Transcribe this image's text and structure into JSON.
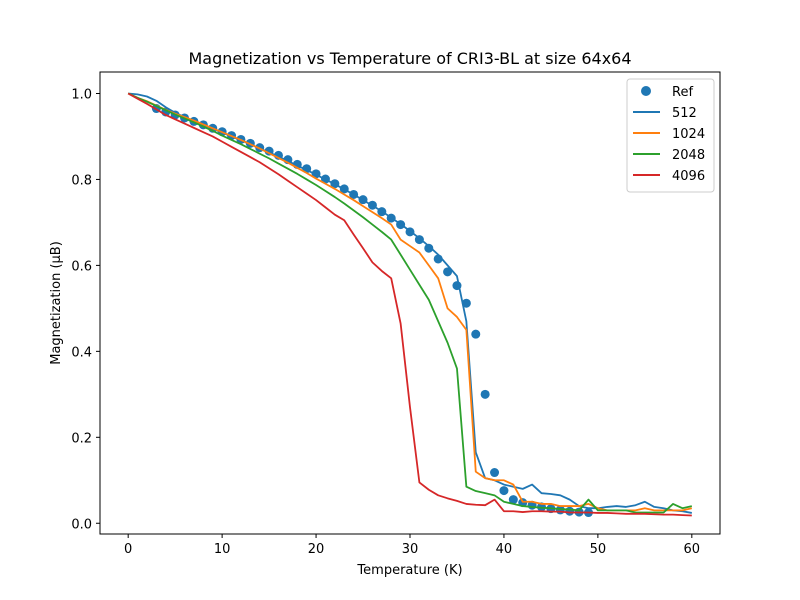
{
  "chart_data": {
    "type": "line",
    "title": "Magnetization vs Temperature of CRI3-BL at size 64x64",
    "xlabel": "Temperature (K)",
    "ylabel": "Magnetization (μB)",
    "xlim": [
      -3,
      63
    ],
    "ylim": [
      -0.025,
      1.05
    ],
    "xticks": [
      0,
      10,
      20,
      30,
      40,
      50,
      60
    ],
    "xtick_labels": [
      "0",
      "10",
      "20",
      "30",
      "40",
      "50",
      "60"
    ],
    "yticks": [
      0.0,
      0.2,
      0.4,
      0.6,
      0.8,
      1.0
    ],
    "ytick_labels": [
      "0.0",
      "0.2",
      "0.4",
      "0.6",
      "0.8",
      "1.0"
    ],
    "legend_position": "top-right",
    "scatter": {
      "name": "Ref",
      "color": "#1f77b4",
      "x": [
        3,
        4,
        5,
        6,
        7,
        8,
        9,
        10,
        11,
        12,
        13,
        14,
        15,
        16,
        17,
        18,
        19,
        20,
        21,
        22,
        23,
        24,
        25,
        26,
        27,
        28,
        29,
        30,
        31,
        32,
        33,
        34,
        35,
        36,
        37,
        38,
        39,
        40,
        41,
        42,
        43,
        44,
        45,
        46,
        47,
        48,
        49
      ],
      "y": [
        0.965,
        0.957,
        0.95,
        0.943,
        0.935,
        0.927,
        0.919,
        0.911,
        0.902,
        0.893,
        0.884,
        0.874,
        0.866,
        0.856,
        0.846,
        0.835,
        0.825,
        0.813,
        0.801,
        0.79,
        0.778,
        0.765,
        0.753,
        0.74,
        0.725,
        0.71,
        0.695,
        0.678,
        0.66,
        0.64,
        0.615,
        0.585,
        0.553,
        0.512,
        0.44,
        0.3,
        0.118,
        0.076,
        0.055,
        0.048,
        0.042,
        0.038,
        0.034,
        0.031,
        0.028,
        0.026,
        0.025
      ]
    },
    "series": [
      {
        "name": "512",
        "color": "#1f77b4",
        "x": [
          0,
          1,
          2,
          3,
          4,
          5,
          6,
          7,
          8,
          9,
          10,
          11,
          12,
          13,
          14,
          15,
          16,
          17,
          18,
          19,
          20,
          21,
          22,
          23,
          24,
          25,
          26,
          27,
          28,
          29,
          30,
          31,
          32,
          33,
          34,
          35,
          36,
          37,
          38,
          39,
          40,
          41,
          42,
          43,
          44,
          45,
          46,
          47,
          48,
          49,
          50,
          51,
          52,
          53,
          54,
          55,
          56,
          57,
          58,
          59,
          60
        ],
        "y": [
          1.0,
          0.998,
          0.993,
          0.983,
          0.968,
          0.955,
          0.945,
          0.935,
          0.927,
          0.918,
          0.909,
          0.9,
          0.891,
          0.882,
          0.872,
          0.863,
          0.853,
          0.843,
          0.832,
          0.822,
          0.811,
          0.8,
          0.789,
          0.777,
          0.765,
          0.752,
          0.739,
          0.726,
          0.711,
          0.696,
          0.68,
          0.663,
          0.645,
          0.625,
          0.6,
          0.575,
          0.47,
          0.165,
          0.105,
          0.1,
          0.09,
          0.085,
          0.08,
          0.09,
          0.07,
          0.068,
          0.065,
          0.055,
          0.04,
          0.035,
          0.035,
          0.038,
          0.04,
          0.038,
          0.042,
          0.05,
          0.038,
          0.035,
          0.03,
          0.028,
          0.024
        ]
      },
      {
        "name": "1024",
        "color": "#ff7f0e",
        "x": [
          0,
          1,
          2,
          3,
          4,
          5,
          6,
          7,
          8,
          9,
          10,
          11,
          12,
          13,
          14,
          15,
          16,
          17,
          18,
          19,
          20,
          21,
          22,
          23,
          24,
          25,
          26,
          27,
          28,
          29,
          30,
          31,
          32,
          33,
          34,
          35,
          36,
          37,
          38,
          39,
          40,
          41,
          42,
          43,
          44,
          45,
          46,
          47,
          48,
          49,
          50,
          51,
          52,
          53,
          54,
          55,
          56,
          57,
          58,
          59,
          60
        ],
        "y": [
          1.0,
          0.99,
          0.982,
          0.972,
          0.962,
          0.953,
          0.945,
          0.937,
          0.928,
          0.919,
          0.91,
          0.901,
          0.892,
          0.882,
          0.872,
          0.861,
          0.85,
          0.839,
          0.827,
          0.815,
          0.802,
          0.79,
          0.778,
          0.765,
          0.752,
          0.738,
          0.724,
          0.71,
          0.695,
          0.66,
          0.645,
          0.63,
          0.6,
          0.57,
          0.5,
          0.48,
          0.45,
          0.12,
          0.105,
          0.1,
          0.1,
          0.09,
          0.05,
          0.05,
          0.045,
          0.045,
          0.04,
          0.04,
          0.04,
          0.045,
          0.035,
          0.03,
          0.03,
          0.03,
          0.03,
          0.035,
          0.03,
          0.03,
          0.03,
          0.03,
          0.035
        ]
      },
      {
        "name": "2048",
        "color": "#2ca02c",
        "x": [
          0,
          1,
          2,
          3,
          4,
          5,
          6,
          7,
          8,
          9,
          10,
          11,
          12,
          13,
          14,
          15,
          16,
          17,
          18,
          19,
          20,
          21,
          22,
          23,
          24,
          25,
          26,
          27,
          28,
          29,
          30,
          31,
          32,
          33,
          34,
          35,
          36,
          37,
          38,
          39,
          40,
          41,
          42,
          43,
          44,
          45,
          46,
          47,
          48,
          49,
          50,
          51,
          52,
          53,
          54,
          55,
          56,
          57,
          58,
          59,
          60
        ],
        "y": [
          1.0,
          0.99,
          0.981,
          0.971,
          0.961,
          0.951,
          0.942,
          0.933,
          0.923,
          0.913,
          0.902,
          0.892,
          0.882,
          0.871,
          0.86,
          0.849,
          0.837,
          0.825,
          0.813,
          0.8,
          0.787,
          0.773,
          0.759,
          0.744,
          0.728,
          0.712,
          0.695,
          0.678,
          0.66,
          0.625,
          0.59,
          0.555,
          0.52,
          0.47,
          0.42,
          0.36,
          0.085,
          0.075,
          0.07,
          0.065,
          0.05,
          0.045,
          0.04,
          0.038,
          0.036,
          0.035,
          0.033,
          0.032,
          0.03,
          0.055,
          0.03,
          0.03,
          0.03,
          0.03,
          0.025,
          0.025,
          0.025,
          0.025,
          0.045,
          0.035,
          0.04
        ]
      },
      {
        "name": "4096",
        "color": "#d62728",
        "x": [
          0,
          1,
          2,
          3,
          4,
          5,
          6,
          7,
          8,
          9,
          10,
          11,
          12,
          13,
          14,
          15,
          16,
          17,
          18,
          19,
          20,
          21,
          22,
          23,
          24,
          25,
          26,
          27,
          28,
          29,
          30,
          31,
          32,
          33,
          34,
          35,
          36,
          37,
          38,
          39,
          40,
          41,
          42,
          43,
          44,
          45,
          46,
          47,
          48,
          49,
          50,
          51,
          52,
          53,
          54,
          55,
          56,
          57,
          58,
          59,
          60
        ],
        "y": [
          1.0,
          0.988,
          0.976,
          0.963,
          0.95,
          0.94,
          0.93,
          0.92,
          0.91,
          0.9,
          0.888,
          0.876,
          0.864,
          0.852,
          0.84,
          0.826,
          0.812,
          0.797,
          0.782,
          0.767,
          0.752,
          0.735,
          0.718,
          0.705,
          0.672,
          0.64,
          0.607,
          0.587,
          0.57,
          0.465,
          0.27,
          0.095,
          0.078,
          0.065,
          0.058,
          0.052,
          0.045,
          0.043,
          0.042,
          0.055,
          0.028,
          0.028,
          0.026,
          0.028,
          0.028,
          0.027,
          0.027,
          0.025,
          0.025,
          0.025,
          0.024,
          0.024,
          0.023,
          0.022,
          0.022,
          0.022,
          0.021,
          0.02,
          0.02,
          0.019,
          0.018
        ]
      }
    ]
  }
}
